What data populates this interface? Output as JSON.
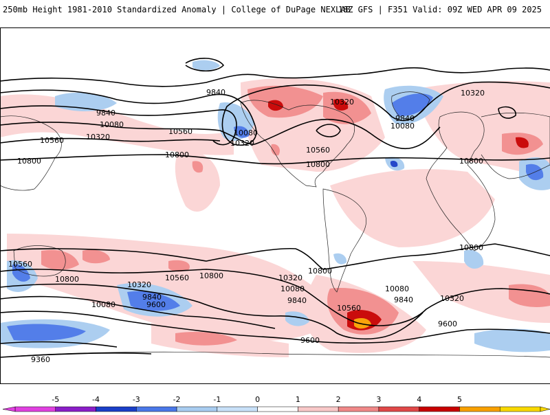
{
  "header": {
    "left_title": "250mb Height 1981-2010 Standardized Anomaly | College of DuPage NEXLAB",
    "right_title": "18Z GFS | F351 Valid: 09Z WED APR 09 2025"
  },
  "contour_labels": [
    "9840",
    "9840",
    "10080",
    "10320",
    "10560",
    "10800",
    "10080",
    "10320",
    "10560",
    "10800",
    "10320",
    "10080",
    "9840",
    "10800",
    "10560",
    "10800",
    "10800",
    "10320",
    "10560",
    "10800",
    "10320",
    "10080",
    "9840",
    "9600",
    "9360",
    "10320",
    "10080",
    "9840",
    "10560",
    "10800",
    "10080",
    "9840",
    "9600",
    "10560",
    "10800",
    "10320",
    "9600"
  ],
  "colorbar": {
    "tick_labels": [
      "-5",
      "-4",
      "-3",
      "-2",
      "-1",
      "0",
      "1",
      "2",
      "3",
      "4",
      "5"
    ],
    "colors": [
      "#e040e0",
      "#8a1ec8",
      "#1a3fc8",
      "#4a78e8",
      "#a8ccf0",
      "#c8e0f8",
      "#ffffff",
      "#f8c8c8",
      "#f08888",
      "#e04848",
      "#c80000",
      "#f8a000",
      "#f8d800"
    ]
  }
}
